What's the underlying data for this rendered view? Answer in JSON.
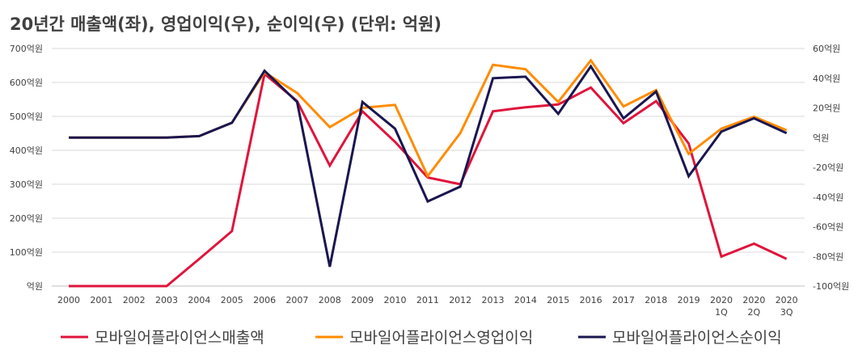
{
  "chart_data": {
    "type": "line",
    "title": "20년간 매출액(좌), 영업이익(우), 순이익(우) (단위: 억원)",
    "categories": [
      [
        "2000"
      ],
      [
        "2001"
      ],
      [
        "2002"
      ],
      [
        "2003"
      ],
      [
        "2004"
      ],
      [
        "2005"
      ],
      [
        "2006"
      ],
      [
        "2007"
      ],
      [
        "2008"
      ],
      [
        "2009"
      ],
      [
        "2010"
      ],
      [
        "2011"
      ],
      [
        "2012"
      ],
      [
        "2013"
      ],
      [
        "2014"
      ],
      [
        "2015"
      ],
      [
        "2016"
      ],
      [
        "2017"
      ],
      [
        "2018"
      ],
      [
        "2019"
      ],
      [
        "2020",
        "1Q"
      ],
      [
        "2020",
        "2Q"
      ],
      [
        "2020",
        "3Q"
      ]
    ],
    "y_left": {
      "ylim": [
        0,
        700
      ],
      "ticks": [
        {
          "value": 700,
          "label": "700억원"
        },
        {
          "value": 600,
          "label": "600억원"
        },
        {
          "value": 500,
          "label": "500억원"
        },
        {
          "value": 400,
          "label": "400억원"
        },
        {
          "value": 300,
          "label": "300억원"
        },
        {
          "value": 200,
          "label": "200억원"
        },
        {
          "value": 100,
          "label": "100억원"
        },
        {
          "value": 0,
          "label": "억원"
        }
      ]
    },
    "y_right": {
      "ylim": [
        -100,
        60
      ],
      "ticks": [
        {
          "value": 60,
          "label": "60억원"
        },
        {
          "value": 40,
          "label": "40억원"
        },
        {
          "value": 20,
          "label": "20억원"
        },
        {
          "value": 0,
          "label": "억원"
        },
        {
          "value": -20,
          "label": "-20억원"
        },
        {
          "value": -40,
          "label": "-40억원"
        },
        {
          "value": -60,
          "label": "-60억원"
        },
        {
          "value": -80,
          "label": "-80억원"
        },
        {
          "value": -100,
          "label": "-100억원"
        }
      ]
    },
    "grid": true,
    "legend_position": "bottom",
    "series": [
      {
        "name": "모바일어플라이언스매출액",
        "axis": "left",
        "color": "#e0143c",
        "values": [
          0,
          0,
          0,
          0,
          80,
          162,
          625,
          545,
          355,
          515,
          425,
          320,
          300,
          515,
          527,
          535,
          585,
          480,
          545,
          420,
          87,
          125,
          80
        ]
      },
      {
        "name": "모바일어플라이언스영업이익",
        "axis": "right",
        "color": "#ff8c00",
        "values": [
          0,
          0,
          0,
          0,
          1,
          10,
          44,
          30,
          7,
          20,
          22,
          -26,
          3,
          49,
          46,
          24,
          52,
          21,
          32,
          -11,
          6,
          14,
          5
        ]
      },
      {
        "name": "모바일어플라이언스순이익",
        "axis": "right",
        "color": "#1a1650",
        "values": [
          0,
          0,
          0,
          0,
          1,
          10,
          45,
          24,
          -87,
          24,
          6,
          -43,
          -33,
          40,
          41,
          16,
          48,
          13,
          31,
          -26,
          4,
          13,
          3
        ]
      }
    ]
  }
}
